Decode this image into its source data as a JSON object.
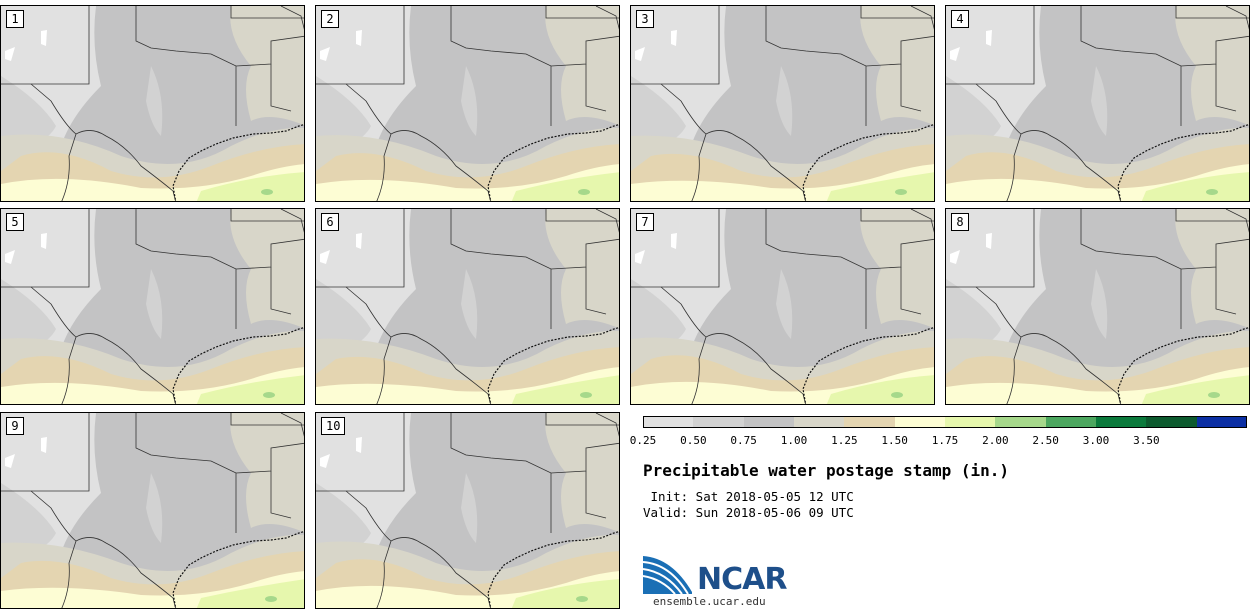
{
  "panels": [
    {
      "label": "1"
    },
    {
      "label": "2"
    },
    {
      "label": "3"
    },
    {
      "label": "4"
    },
    {
      "label": "5"
    },
    {
      "label": "6"
    },
    {
      "label": "7"
    },
    {
      "label": "8"
    },
    {
      "label": "9"
    },
    {
      "label": "10"
    }
  ],
  "colorbar": {
    "ticks": [
      "0.25",
      "0.50",
      "0.75",
      "1.00",
      "1.25",
      "1.50",
      "1.75",
      "2.00",
      "2.50",
      "3.00",
      "3.50"
    ],
    "colors": [
      "#e1e1e1",
      "#d2d2d2",
      "#c3c3c4",
      "#d8d6c9",
      "#e4d5b1",
      "#fdfdd4",
      "#e6f7ad",
      "#a6d88b",
      "#4ca75f",
      "#0b7a3c",
      "#0c5a2e",
      "#0b2fa4"
    ]
  },
  "title": "Precipitable water postage stamp (in.)",
  "init_line": " Init: Sat 2018-05-05 12 UTC",
  "valid_line": "Valid: Sun 2018-05-06 09 UTC",
  "logo": {
    "text": "NCAR",
    "url": "ensemble.ucar.edu"
  }
}
